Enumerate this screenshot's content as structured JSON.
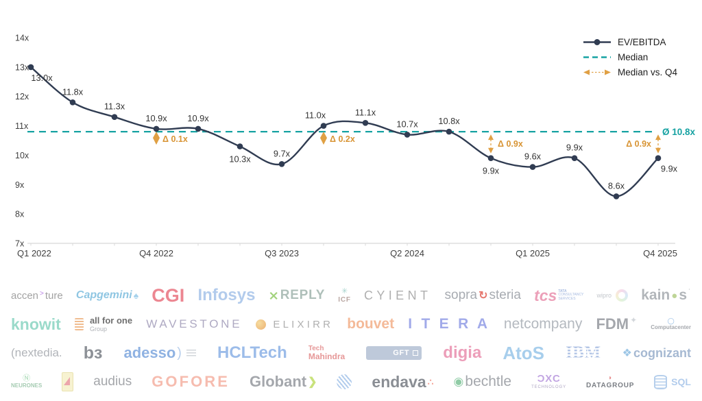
{
  "chart_data": {
    "type": "line",
    "title": "",
    "xlabel": "",
    "ylabel": "",
    "x": [
      "Q1 2022",
      "Q2 2022",
      "Q3 2022",
      "Q4 2022",
      "Q1 2023",
      "Q2 2023",
      "Q3 2023",
      "Q4 2023",
      "Q1 2024",
      "Q2 2024",
      "Q3 2024",
      "Q4 2024",
      "Q1 2025",
      "Q2 2025",
      "Q3 2025",
      "Q4 2025"
    ],
    "series": [
      {
        "name": "EV/EBITDA",
        "values": [
          13.0,
          11.8,
          11.3,
          10.9,
          10.9,
          10.3,
          9.7,
          11.0,
          11.1,
          10.7,
          10.8,
          9.9,
          9.6,
          9.9,
          8.6,
          9.9
        ]
      }
    ],
    "point_labels": [
      "13.0x",
      "11.8x",
      "11.3x",
      "10.9x",
      "10.9x",
      "10.3x",
      "9.7x",
      "11.0x",
      "11.1x",
      "10.7x",
      "10.8x",
      "9.9x",
      "9.6x",
      "9.9x",
      "8.6x",
      "9.9x"
    ],
    "label_side": [
      "below-right",
      "above",
      "above",
      "above",
      "above",
      "below",
      "above",
      "above-left",
      "above",
      "above",
      "above",
      "below",
      "above",
      "above",
      "above",
      "below-right"
    ],
    "median": 10.8,
    "median_label": "Ø 10.8x",
    "annotations": [
      {
        "index": 3,
        "label": "Δ 0.1x",
        "style": "diamond",
        "side": "right"
      },
      {
        "index": 7,
        "label": "Δ 0.2x",
        "style": "diamond",
        "side": "right"
      },
      {
        "index": 11,
        "label": "Δ 0.9x",
        "style": "arrow",
        "side": "right"
      },
      {
        "index": 15,
        "label": "Δ 0.9x",
        "style": "arrow",
        "side": "left"
      }
    ],
    "y_ticks": [
      "14x",
      "13x",
      "12x",
      "11x",
      "10x",
      "9x",
      "8x",
      "7x"
    ],
    "ylim": [
      7,
      14
    ],
    "x_tick_indices": [
      0,
      3,
      6,
      9,
      12,
      15
    ],
    "x_tick_labels": [
      "Q1 2022",
      "Q4 2022",
      "Q3 2023",
      "Q2 2024",
      "Q1 2025",
      "Q4 2025"
    ],
    "legend": [
      "EV/EBITDA",
      "Median",
      "Median vs. Q4"
    ],
    "legend_position": "top-right",
    "grid": false,
    "colors": {
      "line": "#303C52",
      "median": "#16A2A2",
      "delta": "#E0A044",
      "delta_text": "#D89434",
      "point_label": "#333333",
      "axis_line": "#D8D8D8",
      "axis_text": "#404040"
    }
  },
  "logos": {
    "rows": [
      [
        {
          "name": "accenture",
          "parts": [
            {
              "t": "accen",
              "c": "#8C8C8C",
              "fs": 15
            },
            {
              "t": ">",
              "c": "#C08FE8",
              "fs": 10,
              "fw": 700,
              "sup": 1
            },
            {
              "t": "ture",
              "c": "#8C8C8C",
              "fs": 15
            }
          ]
        },
        {
          "name": "capgemini",
          "parts": [
            {
              "t": "Capgemini",
              "c": "#74B8DC",
              "fs": 16,
              "fw": 700,
              "italic": 1
            },
            {
              "t": "♠",
              "c": "#90C8E8",
              "fs": 14
            }
          ]
        },
        {
          "name": "cgi",
          "parts": [
            {
              "t": "CGI",
              "c": "#E86876",
              "fs": 27,
              "fw": 800
            }
          ]
        },
        {
          "name": "infosys",
          "parts": [
            {
              "t": "Infosys",
              "c": "#9FBFE8",
              "fs": 24,
              "fw": 600
            }
          ]
        },
        {
          "name": "reply",
          "parts": [
            {
              "t": "⨯",
              "c": "#8CC85C",
              "fs": 18,
              "fw": 700
            },
            {
              "t": "REPLY",
              "c": "#9AB0A8",
              "fs": 19,
              "fw": 700,
              "ls": 0.04
            }
          ]
        },
        {
          "name": "icf",
          "parts": [
            {
              "lines": [
                {
                  "t": "✳",
                  "c": "#8FC8C0",
                  "fs": 11
                },
                {
                  "t": "ICF",
                  "c": "#A8908A",
                  "fs": 10,
                  "fw": 700,
                  "ls": 0.08
                }
              ]
            }
          ]
        },
        {
          "name": "cyient",
          "parts": [
            {
              "t": "CYIENT",
              "c": "#9C9C9C",
              "fs": 18,
              "ls": 0.3
            }
          ]
        },
        {
          "name": "sopra-steria",
          "parts": [
            {
              "t": "sopra",
              "c": "#92979E",
              "fs": 19
            },
            {
              "t": "↻",
              "c": "#E0574C",
              "fs": 16,
              "fw": 700
            },
            {
              "t": "steria",
              "c": "#92979E",
              "fs": 19
            }
          ]
        },
        {
          "name": "tcs",
          "parts": [
            {
              "t": "tcs",
              "c": "#E889A8",
              "fs": 23,
              "fw": 700,
              "italic": 1
            },
            {
              "lines": [
                {
                  "t": "TATA",
                  "c": "#8FA8D8",
                  "fs": 5,
                  "fw": 700
                },
                {
                  "t": "CONSULTANCY",
                  "c": "#8FA8D8",
                  "fs": 5
                },
                {
                  "t": "SERVICES",
                  "c": "#8FA8D8",
                  "fs": 5
                }
              ],
              "align": "left"
            }
          ]
        },
        {
          "name": "wipro",
          "parts": [
            {
              "t": "wipro",
              "c": "#B4B8BE",
              "fs": 9
            },
            {
              "shape": "wipro-ring"
            }
          ]
        },
        {
          "name": "kainos",
          "parts": [
            {
              "t": "kain",
              "c": "#A0A4AA",
              "fs": 21,
              "fw": 600
            },
            {
              "t": "●",
              "c": "#AFCB7E",
              "fs": 15
            },
            {
              "t": "s",
              "c": "#A0A4AA",
              "fs": 21,
              "fw": 600
            },
            {
              "t": "˙",
              "c": "#A0A4AA",
              "fs": 12,
              "sup": 1
            }
          ]
        }
      ],
      [
        {
          "name": "knowit",
          "parts": [
            {
              "t": "knowit",
              "c": "#82D2BE",
              "fs": 23,
              "fw": 600
            }
          ]
        },
        {
          "name": "all-for-one-group",
          "parts": [
            {
              "shape": "coil"
            },
            {
              "lines": [
                {
                  "t": "all for one",
                  "c": "#4A4A4A",
                  "fs": 13,
                  "fw": 700
                },
                {
                  "t": "Group",
                  "c": "#9A9EA4",
                  "fs": 9
                }
              ],
              "align": "left"
            }
          ]
        },
        {
          "name": "wavestone",
          "parts": [
            {
              "t": "WAVESTONE",
              "c": "#9A94B4",
              "fs": 17,
              "ls": 0.22
            }
          ]
        },
        {
          "name": "elixirr",
          "parts": [
            {
              "shape": "elixirr-ball"
            },
            {
              "t": "ELIXIRR",
              "c": "#9C9C9C",
              "fs": 15,
              "ls": 0.28
            }
          ]
        },
        {
          "name": "bouvet",
          "parts": [
            {
              "t": "bouvet",
              "c": "#F2AA80",
              "fs": 21,
              "fw": 600
            }
          ]
        },
        {
          "name": "itera",
          "parts": [
            {
              "t": "I T E R A",
              "c": "#8A96E4",
              "fs": 21,
              "fw": 700,
              "ls": 0.18
            }
          ]
        },
        {
          "name": "netcompany",
          "parts": [
            {
              "t": "netcompany",
              "c": "#A2A8B0",
              "fs": 21
            }
          ]
        },
        {
          "name": "fdm",
          "parts": [
            {
              "t": "FDM",
              "c": "#8E9298",
              "fs": 22,
              "fw": 800
            },
            {
              "t": "✦",
              "c": "#C8CCD2",
              "fs": 12,
              "sup": 1
            }
          ]
        },
        {
          "name": "computacenter",
          "parts": [
            {
              "lines": [
                {
                  "t": "◯",
                  "c": "#74A8DC",
                  "fs": 9
                },
                {
                  "t": "Computacenter",
                  "c": "#8E9298",
                  "fs": 8,
                  "fw": 700
                }
              ]
            }
          ]
        }
      ],
      [
        {
          "name": "nextedia",
          "parts": [
            {
              "t": "(nextedia.",
              "c": "#9EA2A8",
              "fs": 17
            }
          ]
        },
        {
          "name": "b3",
          "parts": [
            {
              "t": "bɜ",
              "c": "#71767E",
              "fs": 25,
              "fw": 600
            }
          ]
        },
        {
          "name": "adesso",
          "parts": [
            {
              "t": "adesso",
              "c": "#74A0DC",
              "fs": 22,
              "fw": 700
            },
            {
              "t": ")",
              "c": "#A8C4E8",
              "fs": 20
            },
            {
              "shape": "tiny-lines"
            }
          ]
        },
        {
          "name": "hcltech",
          "parts": [
            {
              "t": "HCLTech",
              "c": "#84ACE4",
              "fs": 24,
              "fw": 700
            }
          ]
        },
        {
          "name": "tech-mahindra",
          "parts": [
            {
              "lines": [
                {
                  "t": "Tech",
                  "c": "#E07E7E",
                  "fs": 10,
                  "fw": 600
                },
                {
                  "t": "Mahindra",
                  "c": "#E07E7E",
                  "fs": 12,
                  "fw": 700
                }
              ],
              "align": "left"
            }
          ]
        },
        {
          "name": "gft",
          "parts": [
            {
              "t": "GFT",
              "shape": "gft-box"
            }
          ]
        },
        {
          "name": "digia",
          "parts": [
            {
              "t": "digia",
              "c": "#E886A8",
              "fs": 24,
              "fw": 600
            }
          ]
        },
        {
          "name": "atos",
          "parts": [
            {
              "t": "AtoS",
              "c": "#92C2E8",
              "fs": 26,
              "fw": 600
            }
          ]
        },
        {
          "name": "ibm",
          "parts": [
            {
              "t": "IBM",
              "shape": "ibm-stripes"
            }
          ]
        },
        {
          "name": "cognizant",
          "parts": [
            {
              "t": "❖",
              "c": "#84B8E0",
              "fs": 16
            },
            {
              "t": "cognizant",
              "c": "#90A8C8",
              "fs": 18,
              "fw": 600
            }
          ]
        }
      ],
      [
        {
          "name": "neurones",
          "parts": [
            {
              "lines": [
                {
                  "t": "Ⓝ",
                  "c": "#8FCF9F",
                  "fs": 11
                },
                {
                  "t": "NEURONES",
                  "c": "#8FBF9F",
                  "fs": 8,
                  "fw": 700
                }
              ]
            }
          ]
        },
        {
          "name": "unidentified-logo",
          "parts": [
            {
              "shape": "door-mark"
            }
          ]
        },
        {
          "name": "audius",
          "parts": [
            {
              "t": "audius",
              "c": "#8E9196",
              "fs": 19
            }
          ]
        },
        {
          "name": "gofore",
          "parts": [
            {
              "t": "GOFORE",
              "c": "#F4AC9C",
              "fs": 22,
              "fw": 700,
              "ls": 0.14
            }
          ]
        },
        {
          "name": "globant",
          "parts": [
            {
              "t": "Globant",
              "c": "#8E9298",
              "fs": 22,
              "fw": 600
            },
            {
              "t": "❯",
              "c": "#BCDC5C",
              "fs": 16,
              "fw": 700
            }
          ]
        },
        {
          "name": "sii",
          "parts": [
            {
              "shape": "sii-swirl"
            }
          ]
        },
        {
          "name": "endava",
          "parts": [
            {
              "t": "endava",
              "c": "#6E737A",
              "fs": 23,
              "fw": 600
            },
            {
              "t": "∴",
              "c": "#F28C7C",
              "fs": 14,
              "fw": 700
            }
          ]
        },
        {
          "name": "bechtle",
          "parts": [
            {
              "t": "◉",
              "c": "#74BF8F",
              "fs": 17
            },
            {
              "t": "bechtle",
              "c": "#8E9298",
              "fs": 21
            }
          ]
        },
        {
          "name": "dxc-technology",
          "parts": [
            {
              "lines": [
                {
                  "t": "ƆXC",
                  "c": "#B490DC",
                  "fs": 15,
                  "fw": 800,
                  "ls": 0.05
                },
                {
                  "t": "TECHNOLOGY",
                  "c": "#9A8FB4",
                  "fs": 6,
                  "ls": 0.15
                }
              ]
            }
          ]
        },
        {
          "name": "datagroup",
          "parts": [
            {
              "lines": [
                {
                  "t": "◗",
                  "c": "#E07070",
                  "fs": 10
                },
                {
                  "t": "DATAGROUP",
                  "c": "#5A5E66",
                  "fs": 10,
                  "fw": 700,
                  "ls": 0.08
                }
              ]
            }
          ]
        },
        {
          "name": "sql",
          "parts": [
            {
              "shape": "db-cylinder"
            },
            {
              "t": "SQL",
              "c": "#9FC0E8",
              "fs": 14,
              "fw": 700
            }
          ]
        }
      ]
    ]
  }
}
